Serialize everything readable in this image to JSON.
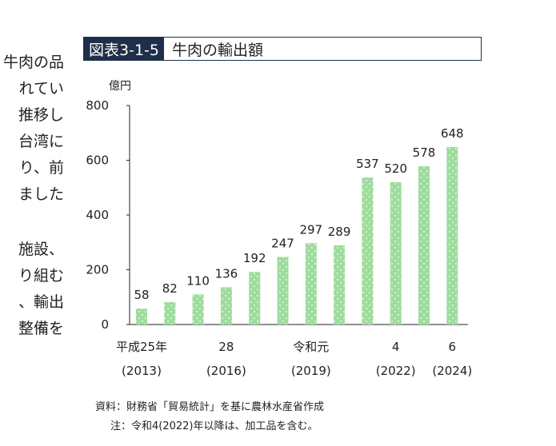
{
  "left_text": [
    "牛肉の品",
    "れてい",
    "推移し",
    "台湾に",
    "り、前",
    "ました",
    "",
    "施設、",
    "り組む",
    "、輸出",
    "整備を"
  ],
  "figure": {
    "number": "図表3-1-5",
    "title": "牛肉の輸出額"
  },
  "chart_data": {
    "type": "bar",
    "ylabel": "億円",
    "ylim": [
      0,
      800
    ],
    "yticks": [
      0,
      200,
      400,
      600,
      800
    ],
    "grid": false,
    "bar_color": "#9edc9c",
    "categories": [
      "2013",
      "2014",
      "2015",
      "2016",
      "2017",
      "2018",
      "2019",
      "2020",
      "2021",
      "2022",
      "2023",
      "2024"
    ],
    "values": [
      58,
      82,
      110,
      136,
      192,
      247,
      297,
      289,
      537,
      520,
      578,
      648
    ],
    "tick_labels": [
      {
        "index": 0,
        "line1": "平成25年",
        "line2": "(2013)"
      },
      {
        "index": 3,
        "line1": "28",
        "line2": "(2016)"
      },
      {
        "index": 6,
        "line1": "令和元",
        "line2": "(2019)"
      },
      {
        "index": 9,
        "line1": "4",
        "line2": "(2022)"
      },
      {
        "index": 11,
        "line1": "6",
        "line2": "(2024)"
      }
    ]
  },
  "source": "資料：財務省「貿易統計」を基に農林水産省作成",
  "note": "注：令和4(2022)年以降は、加工品を含む。"
}
